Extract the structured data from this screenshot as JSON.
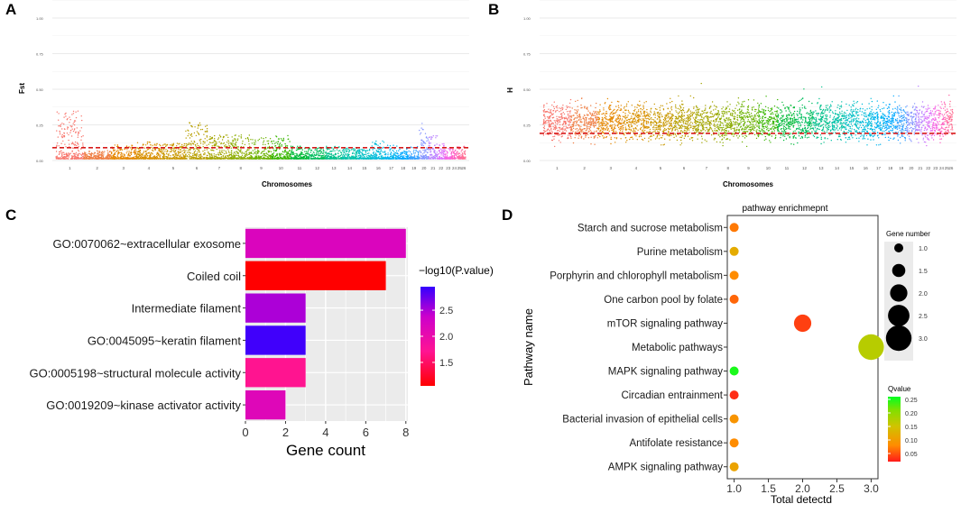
{
  "panels": {
    "a": "A",
    "b": "B",
    "c": "C",
    "d": "D"
  },
  "colors": {
    "chrom_palette": [
      "#f8766d",
      "#ef7f45",
      "#e58700",
      "#d89000",
      "#c99800",
      "#b79f00",
      "#a3a500",
      "#8bac00",
      "#6bb100",
      "#39b600",
      "#00ba38",
      "#00bd5c",
      "#00c08b",
      "#00c1a8",
      "#00bfc4",
      "#00bbdb",
      "#00b4ef",
      "#00a9ff",
      "#35a2ff",
      "#8494ff",
      "#b983ff",
      "#dc71fa",
      "#f564e3",
      "#ff61c3",
      "#ff67a4",
      "#ff6c91"
    ],
    "threshold": "#d71a1a"
  },
  "chart_data": [
    {
      "id": "A",
      "type": "scatter",
      "title": "",
      "xlabel": "Chromosomes",
      "ylabel": "Fst",
      "ylim": [
        0,
        1
      ],
      "yticks": [
        "0.00",
        "0.25",
        "0.50",
        "0.75",
        "1.00"
      ],
      "categories": [
        "1",
        "2",
        "3",
        "4",
        "5",
        "6",
        "7",
        "8",
        "9",
        "10",
        "11",
        "12",
        "13",
        "14",
        "15",
        "16",
        "17",
        "18",
        "19",
        "20",
        "21",
        "22",
        "23",
        "24",
        "25",
        "26"
      ],
      "threshold": 0.09,
      "baseline": 0.03,
      "spread": [
        0.35,
        0.07,
        0.11,
        0.13,
        0.12,
        0.27,
        0.18,
        0.18,
        0.16,
        0.18,
        0.1,
        0.09,
        0.1,
        0.09,
        0.08,
        0.14,
        0.11,
        0.09,
        0.1,
        0.26,
        0.18,
        0.12,
        0.09,
        0.08,
        0.1,
        0.1
      ]
    },
    {
      "id": "B",
      "type": "scatter",
      "title": "",
      "xlabel": "Chromosomes",
      "ylabel": "H",
      "ylim": [
        0,
        1
      ],
      "yticks": [
        "0.00",
        "0.25",
        "0.50",
        "0.75",
        "1.00"
      ],
      "categories": [
        "1",
        "2",
        "3",
        "4",
        "5",
        "6",
        "7",
        "8",
        "9",
        "10",
        "11",
        "12",
        "13",
        "14",
        "15",
        "16",
        "17",
        "18",
        "19",
        "20",
        "21",
        "22",
        "23",
        "24",
        "25",
        "26"
      ],
      "threshold": 0.19,
      "baseline": 0.28,
      "spread": [
        0.52,
        0.6,
        0.58,
        0.56,
        0.54,
        0.6,
        0.62,
        0.58,
        0.6,
        0.58,
        0.66,
        0.72,
        0.7,
        0.6,
        0.58,
        0.62,
        0.58,
        0.56,
        0.55,
        0.82,
        0.6,
        0.58,
        0.56,
        0.56,
        0.6,
        0.62
      ]
    },
    {
      "id": "C",
      "type": "bar",
      "orientation": "horizontal",
      "xlabel": "Gene count",
      "ylabel": "",
      "xlim": [
        0,
        8.1
      ],
      "xticks": [
        "0",
        "2",
        "4",
        "6",
        "8"
      ],
      "categories": [
        "GO:0070062~extracellular exosome",
        "Coiled coil",
        "Intermediate filament",
        "GO:0045095~keratin filament",
        "GO:0005198~structural molecule activity",
        "GO:0019209~kinase activator activity"
      ],
      "values": [
        8,
        7,
        3,
        3,
        3,
        2
      ],
      "pvalue_log10": [
        2.2,
        1.05,
        2.5,
        2.9,
        1.7,
        2.15
      ],
      "legend": {
        "title": "−log10(P.value)",
        "ticks": [
          "2.5",
          "2.0",
          "1.5"
        ],
        "tick_values": [
          2.5,
          2.0,
          1.5
        ],
        "range": [
          1.05,
          2.95
        ],
        "colors": [
          "#ff0000",
          "#ff1493",
          "#cc00cc",
          "#3300ff"
        ]
      }
    },
    {
      "id": "D",
      "type": "scatter",
      "title": "pathway enrichmepnt",
      "xlabel": "Total detectd",
      "ylabel": "Pathway name",
      "xlim": [
        0.9,
        3.1
      ],
      "xticks": [
        "1.0",
        "1.5",
        "2.0",
        "2.5",
        "3.0"
      ],
      "categories": [
        "Starch and sucrose metabolism",
        "Purine metabolism",
        "Porphyrin and chlorophyll metabolism",
        "One carbon pool by folate",
        "mTOR signaling pathway",
        "Metabolic pathways",
        "MAPK signaling pathway",
        "Circadian entrainment",
        "Bacterial invasion of epithelial cells",
        "Antifolate resistance",
        "AMPK signaling pathway"
      ],
      "x": [
        1,
        1,
        1,
        1,
        2,
        3,
        1,
        1,
        1,
        1,
        1
      ],
      "qvalue": [
        0.07,
        0.12,
        0.08,
        0.06,
        0.04,
        0.17,
        0.25,
        0.03,
        0.09,
        0.08,
        0.11
      ],
      "legend_size": {
        "title": "Gene number",
        "labels": [
          "1.0",
          "1.5",
          "2.0",
          "2.5",
          "3.0"
        ],
        "values": [
          1.0,
          1.5,
          2.0,
          2.5,
          3.0
        ]
      },
      "legend_color": {
        "title": "Qvalue",
        "labels": [
          "0.25",
          "0.20",
          "0.15",
          "0.10",
          "0.05"
        ],
        "values": [
          0.25,
          0.2,
          0.15,
          0.1,
          0.05
        ],
        "range": [
          0.02,
          0.26
        ],
        "colors": [
          "#ff1a1a",
          "#ff8c00",
          "#cfc400",
          "#7fe000",
          "#00ff22"
        ]
      }
    }
  ]
}
